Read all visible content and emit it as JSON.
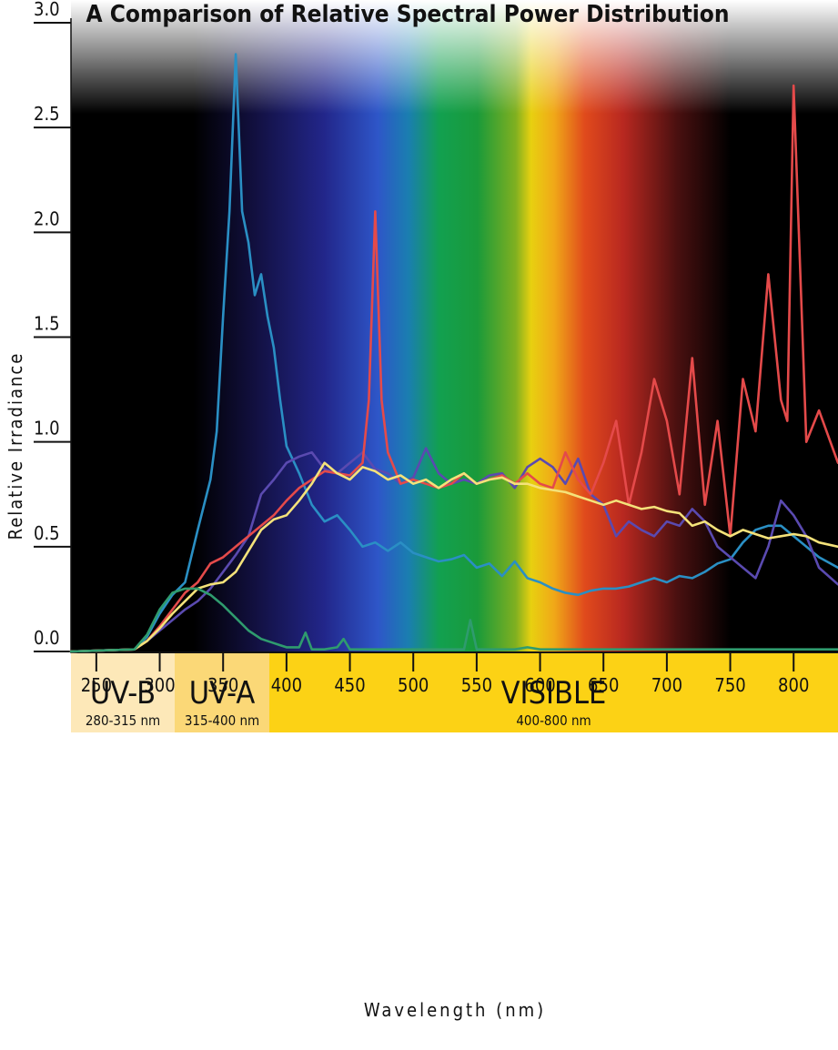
{
  "chart_data": {
    "type": "line",
    "title": "A Comparison of Relative Spectral Power Distribution",
    "xlabel": "Wavelength (nm)",
    "ylabel": "Relative Irradiance",
    "xlim": [
      230,
      835
    ],
    "ylim": [
      0,
      3.0
    ],
    "x_ticks": [
      "250",
      "300",
      "350",
      "400",
      "450",
      "500",
      "550",
      "600",
      "650",
      "700",
      "750",
      "800"
    ],
    "y_ticks": [
      "0.0",
      "0.5",
      "1.0",
      "1.5",
      "2.0",
      "2.5",
      "3.0"
    ],
    "grid": false,
    "background": "visible spectrum gradient",
    "bands": [
      {
        "name": "UV-B",
        "range": "280-315 nm",
        "color": "#fde8b8"
      },
      {
        "name": "UV-A",
        "range": "315-400 nm",
        "color": "#fbd877"
      },
      {
        "name": "VISIBLE",
        "range": "400-800 nm",
        "color": "#fcd215"
      }
    ],
    "series": [
      {
        "color": "#2a8fc4",
        "x": [
          230,
          280,
          290,
          300,
          310,
          320,
          330,
          340,
          345,
          350,
          355,
          360,
          365,
          370,
          375,
          380,
          385,
          390,
          395,
          400,
          410,
          420,
          430,
          440,
          450,
          460,
          470,
          480,
          490,
          500,
          510,
          520,
          530,
          540,
          550,
          560,
          570,
          580,
          590,
          600,
          610,
          620,
          630,
          640,
          650,
          660,
          670,
          680,
          690,
          700,
          710,
          720,
          730,
          740,
          750,
          760,
          770,
          780,
          790,
          800,
          810,
          820,
          835
        ],
        "y": [
          0,
          0.01,
          0.07,
          0.18,
          0.27,
          0.33,
          0.58,
          0.82,
          1.05,
          1.6,
          2.1,
          2.85,
          2.1,
          1.95,
          1.7,
          1.8,
          1.6,
          1.45,
          1.2,
          0.98,
          0.85,
          0.7,
          0.62,
          0.65,
          0.58,
          0.5,
          0.52,
          0.48,
          0.52,
          0.47,
          0.45,
          0.43,
          0.44,
          0.46,
          0.4,
          0.42,
          0.36,
          0.43,
          0.35,
          0.33,
          0.3,
          0.28,
          0.27,
          0.29,
          0.3,
          0.3,
          0.31,
          0.33,
          0.35,
          0.33,
          0.36,
          0.35,
          0.38,
          0.42,
          0.44,
          0.52,
          0.58,
          0.6,
          0.6,
          0.55,
          0.5,
          0.45,
          0.4
        ]
      },
      {
        "color": "#5a4ab0",
        "x": [
          230,
          280,
          290,
          300,
          310,
          320,
          330,
          340,
          350,
          360,
          370,
          380,
          390,
          400,
          410,
          420,
          430,
          440,
          450,
          460,
          470,
          480,
          490,
          500,
          510,
          520,
          530,
          540,
          550,
          560,
          570,
          580,
          590,
          600,
          610,
          620,
          630,
          640,
          650,
          660,
          670,
          680,
          690,
          700,
          710,
          720,
          730,
          740,
          750,
          760,
          770,
          780,
          790,
          800,
          810,
          820,
          835
        ],
        "y": [
          0,
          0.01,
          0.05,
          0.1,
          0.15,
          0.2,
          0.24,
          0.3,
          0.38,
          0.46,
          0.55,
          0.75,
          0.82,
          0.9,
          0.93,
          0.95,
          0.87,
          0.85,
          0.9,
          0.95,
          0.87,
          0.85,
          0.8,
          0.83,
          0.97,
          0.85,
          0.8,
          0.82,
          0.8,
          0.84,
          0.85,
          0.78,
          0.88,
          0.92,
          0.88,
          0.8,
          0.92,
          0.75,
          0.7,
          0.55,
          0.62,
          0.58,
          0.55,
          0.62,
          0.6,
          0.68,
          0.62,
          0.5,
          0.45,
          0.4,
          0.35,
          0.5,
          0.72,
          0.65,
          0.55,
          0.4,
          0.32
        ]
      },
      {
        "color": "#e44a4a",
        "x": [
          230,
          280,
          290,
          300,
          310,
          320,
          330,
          340,
          350,
          360,
          370,
          380,
          390,
          400,
          410,
          420,
          430,
          440,
          450,
          460,
          465,
          470,
          475,
          480,
          490,
          500,
          510,
          520,
          530,
          540,
          550,
          560,
          570,
          580,
          590,
          600,
          610,
          620,
          630,
          640,
          650,
          660,
          670,
          680,
          690,
          700,
          710,
          720,
          730,
          740,
          750,
          760,
          770,
          780,
          790,
          795,
          800,
          810,
          820,
          835
        ],
        "y": [
          0,
          0.01,
          0.05,
          0.12,
          0.2,
          0.28,
          0.33,
          0.42,
          0.45,
          0.5,
          0.55,
          0.6,
          0.65,
          0.72,
          0.78,
          0.82,
          0.86,
          0.85,
          0.84,
          0.9,
          1.2,
          2.1,
          1.2,
          0.95,
          0.8,
          0.82,
          0.8,
          0.78,
          0.8,
          0.85,
          0.8,
          0.82,
          0.84,
          0.8,
          0.85,
          0.8,
          0.78,
          0.95,
          0.82,
          0.75,
          0.9,
          1.1,
          0.7,
          0.95,
          1.3,
          1.1,
          0.75,
          1.4,
          0.7,
          1.1,
          0.55,
          1.3,
          1.05,
          1.8,
          1.2,
          1.1,
          2.7,
          1.0,
          1.15,
          0.9
        ]
      },
      {
        "color": "#f4e27a",
        "x": [
          230,
          280,
          290,
          300,
          310,
          320,
          330,
          340,
          350,
          360,
          370,
          380,
          390,
          400,
          410,
          420,
          430,
          440,
          450,
          460,
          470,
          480,
          490,
          500,
          510,
          520,
          530,
          540,
          550,
          560,
          570,
          580,
          590,
          600,
          610,
          620,
          630,
          640,
          650,
          660,
          670,
          680,
          690,
          700,
          710,
          720,
          730,
          740,
          750,
          760,
          770,
          780,
          790,
          800,
          810,
          820,
          835
        ],
        "y": [
          0,
          0.01,
          0.05,
          0.11,
          0.18,
          0.24,
          0.3,
          0.32,
          0.33,
          0.38,
          0.48,
          0.58,
          0.63,
          0.65,
          0.72,
          0.8,
          0.9,
          0.85,
          0.82,
          0.88,
          0.86,
          0.82,
          0.84,
          0.8,
          0.82,
          0.78,
          0.82,
          0.85,
          0.8,
          0.82,
          0.83,
          0.8,
          0.8,
          0.78,
          0.77,
          0.76,
          0.74,
          0.72,
          0.7,
          0.72,
          0.7,
          0.68,
          0.69,
          0.67,
          0.66,
          0.6,
          0.62,
          0.58,
          0.55,
          0.58,
          0.56,
          0.54,
          0.55,
          0.56,
          0.55,
          0.52,
          0.5
        ]
      },
      {
        "color": "#2f9b6e",
        "x": [
          230,
          280,
          290,
          300,
          310,
          320,
          330,
          340,
          350,
          360,
          370,
          380,
          390,
          395,
          400,
          410,
          415,
          420,
          430,
          440,
          445,
          450,
          460,
          470,
          480,
          490,
          500,
          510,
          520,
          530,
          540,
          545,
          550,
          560,
          570,
          580,
          590,
          600,
          620,
          640,
          660,
          680,
          700,
          720,
          740,
          760,
          780,
          800,
          820,
          835
        ],
        "y": [
          0,
          0.01,
          0.08,
          0.2,
          0.28,
          0.3,
          0.3,
          0.27,
          0.22,
          0.16,
          0.1,
          0.06,
          0.04,
          0.03,
          0.02,
          0.02,
          0.09,
          0.01,
          0.01,
          0.02,
          0.06,
          0.01,
          0.01,
          0.01,
          0.01,
          0.01,
          0.01,
          0.01,
          0.01,
          0.01,
          0.01,
          0.15,
          0.01,
          0.01,
          0.01,
          0.01,
          0.02,
          0.01,
          0.01,
          0.01,
          0.01,
          0.01,
          0.01,
          0.01,
          0.01,
          0.01,
          0.01,
          0.01,
          0.01,
          0.01
        ]
      }
    ]
  }
}
